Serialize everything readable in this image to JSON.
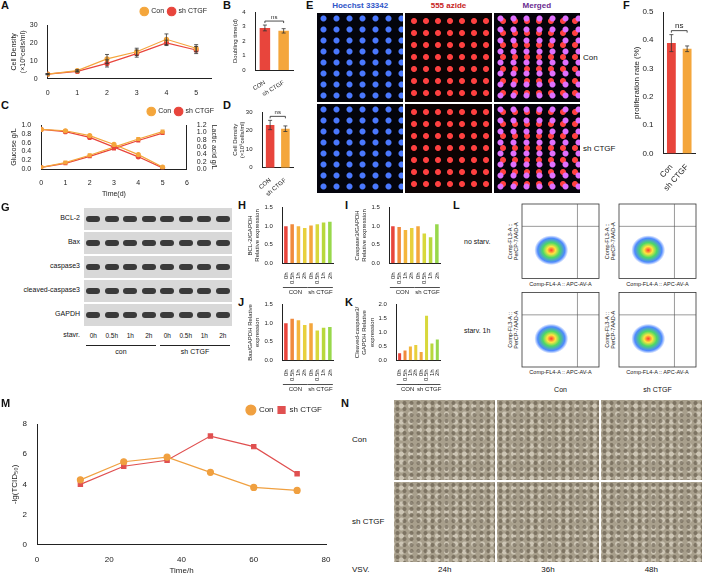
{
  "chart_data": [
    {
      "panel": "A",
      "type": "line",
      "x": [
        0,
        1,
        2,
        3,
        4,
        5
      ],
      "xlim": [
        0,
        5.5
      ],
      "xticks": [
        0,
        1,
        2,
        3,
        4,
        5
      ],
      "y_label": "Cell Density(×10⁵cells/ml)",
      "ylim": [
        0,
        30
      ],
      "yticks": [
        0,
        10,
        20,
        30
      ],
      "grid": false,
      "legend": "top",
      "series": [
        {
          "name": "Con",
          "color": "#f4a63c",
          "marker": "circle",
          "values": [
            2.5,
            4.5,
            11,
            15,
            22,
            17
          ],
          "errors": [
            0.3,
            0.5,
            2.5,
            2,
            3,
            2
          ]
        },
        {
          "name": "sh CTGF",
          "color": "#e8453c",
          "marker": "circle",
          "values": [
            2.5,
            4,
            8.5,
            14,
            20,
            16
          ],
          "errors": [
            0.3,
            0.4,
            2,
            2,
            1.5,
            2
          ]
        }
      ]
    },
    {
      "panel": "B",
      "type": "bar",
      "categories": [
        "CON",
        "sh CTGF"
      ],
      "y_label": "Doubling time(d)",
      "ylim": [
        0,
        4
      ],
      "yticks": [
        0,
        1,
        2,
        3,
        4
      ],
      "grid": false,
      "colors": [
        "#e8453c",
        "#f4a63c"
      ],
      "values": [
        2.9,
        2.7
      ],
      "errors": [
        0.2,
        0.15
      ],
      "annotation": "ns"
    },
    {
      "panel": "C",
      "type": "line",
      "x": [
        0,
        1,
        2,
        3,
        4,
        5
      ],
      "x_label": "Time(d)",
      "xlim": [
        0,
        6
      ],
      "xticks": [
        0,
        1,
        2,
        3,
        4,
        5,
        6
      ],
      "y_label": "Glucose g/L",
      "ylim": [
        0,
        1
      ],
      "yticks": [
        {
          "value": 0,
          "label": "0.0"
        },
        0.2,
        0.4,
        0.6,
        0.8,
        {
          "value": 1,
          "label": "1.0"
        }
      ],
      "y2_label": "Lactic acid g/L",
      "y2lim": [
        0,
        1.2
      ],
      "y2ticks": [
        {
          "value": 0,
          "label": "0.0"
        },
        0.2,
        0.4,
        0.6,
        0.8,
        {
          "value": 1,
          "label": "1.0"
        },
        1.2
      ],
      "grid": false,
      "legend": "top",
      "series": [
        {
          "name": "Con",
          "color": "#f4a63c",
          "marker": "circle",
          "values": [
            0.9,
            0.87,
            0.76,
            0.56,
            0.33,
            0.05
          ]
        },
        {
          "name": "sh CTGF",
          "color": "#e8453c",
          "marker": "circle",
          "values": [
            0.9,
            0.85,
            0.72,
            0.5,
            0.28,
            0.03
          ]
        },
        {
          "name": "Con",
          "color": "#f4a63c",
          "marker": "square",
          "axis": "y2",
          "values": [
            0.05,
            0.18,
            0.38,
            0.6,
            0.82,
            1.02
          ]
        },
        {
          "name": "sh CTGF",
          "color": "#e8453c",
          "marker": "square",
          "axis": "y2",
          "values": [
            0.05,
            0.16,
            0.35,
            0.56,
            0.78,
            0.98
          ]
        }
      ]
    },
    {
      "panel": "D",
      "type": "bar",
      "categories": [
        "CON",
        "sh CTGF"
      ],
      "y_label": "Cell Density(×10⁵cells/ml)",
      "ylim": [
        0,
        30
      ],
      "yticks": [
        0,
        10,
        20,
        30
      ],
      "grid": false,
      "colors": [
        "#e8453c",
        "#f4a63c"
      ],
      "values": [
        23,
        21
      ],
      "errors": [
        2.5,
        1.5
      ],
      "annotation": "ns"
    },
    {
      "panel": "F",
      "type": "bar",
      "categories": [
        "Con",
        "sh CTGF"
      ],
      "y_label": "proliferation rate (%)",
      "ylim": [
        0,
        0.5
      ],
      "yticks": [
        {
          "value": 0,
          "label": "0.0"
        },
        0.1,
        0.2,
        0.3,
        0.4,
        0.5
      ],
      "grid": false,
      "colors": [
        "#e8453c",
        "#f4a63c"
      ],
      "values": [
        0.39,
        0.37
      ],
      "errors": [
        0.03,
        0.01
      ],
      "annotation": "ns"
    },
    {
      "panel": "H",
      "type": "bar",
      "categories": [
        "0h",
        "0.5h",
        "1h",
        "2h",
        "0h",
        "0.5h",
        "1h",
        "2h"
      ],
      "groups": [
        {
          "label": "CON",
          "from": 0,
          "to": 3
        },
        {
          "label": "sh CTGF",
          "from": 4,
          "to": 7
        }
      ],
      "y_label": "BCL-2/GAPDH Relative expression",
      "ylim": [
        0,
        1.5
      ],
      "yticks": [
        {
          "value": 0,
          "label": "0.0"
        },
        0.5,
        {
          "value": 1,
          "label": "1.0"
        },
        1.5
      ],
      "grid": false,
      "colors": [
        "#e8453c",
        "#f08a3c",
        "#f4b63c",
        "#e8d03c",
        "#f4a63c",
        "#d8d83c",
        "#b8d83c",
        "#98d84c"
      ],
      "values": [
        1.0,
        1.05,
        1.0,
        0.95,
        1.02,
        1.05,
        1.1,
        1.12
      ]
    },
    {
      "panel": "I",
      "type": "bar",
      "categories": [
        "0h",
        "0.5h",
        "1h",
        "2h",
        "0h",
        "0.5h",
        "1h",
        "2h"
      ],
      "groups": [
        {
          "label": "CON",
          "from": 0,
          "to": 3
        },
        {
          "label": "sh CTGF",
          "from": 4,
          "to": 7
        }
      ],
      "y_label": "Caspase3/GAPDH Relative expression",
      "ylim": [
        0,
        1.5
      ],
      "yticks": [
        {
          "value": 0,
          "label": "0.0"
        },
        0.5,
        {
          "value": 1,
          "label": "1.0"
        },
        1.5
      ],
      "grid": false,
      "colors": [
        "#e8453c",
        "#f08a3c",
        "#f4b63c",
        "#e8d03c",
        "#f4a63c",
        "#d8d83c",
        "#b8d83c",
        "#98d84c"
      ],
      "values": [
        1.0,
        0.98,
        0.9,
        0.95,
        1.0,
        0.8,
        0.7,
        1.05
      ]
    },
    {
      "panel": "J",
      "type": "bar",
      "categories": [
        "0h",
        "0.5h",
        "1h",
        "2h",
        "0h",
        "0.5h",
        "1h",
        "2h"
      ],
      "groups": [
        {
          "label": "CON",
          "from": 0,
          "to": 3
        },
        {
          "label": "sh CTGF",
          "from": 4,
          "to": 7
        }
      ],
      "y_label": "Bax/GAPDH Relative expression",
      "ylim": [
        0,
        1.5
      ],
      "yticks": [
        {
          "value": 0,
          "label": "0.0"
        },
        0.5,
        {
          "value": 1,
          "label": "1.0"
        },
        1.5
      ],
      "grid": false,
      "colors": [
        "#e8453c",
        "#f08a3c",
        "#f4b63c",
        "#e8d03c",
        "#f4a63c",
        "#d8d83c",
        "#b8d83c",
        "#98d84c"
      ],
      "values": [
        1.0,
        1.12,
        1.08,
        0.95,
        1.0,
        0.8,
        0.88,
        0.9
      ]
    },
    {
      "panel": "K",
      "type": "bar",
      "categories": [
        "0h",
        "0.5h",
        "1h",
        "2h",
        "0h",
        "0.5h",
        "1h",
        "2h"
      ],
      "groups": [
        {
          "label": "CON",
          "from": 0,
          "to": 3
        },
        {
          "label": "sh CTGF",
          "from": 4,
          "to": 7
        }
      ],
      "y_label": "Cleaved-caspase3/GAPDH Relative expression",
      "ylim": [
        0,
        2
      ],
      "yticks": [
        {
          "value": 0,
          "label": "0.0"
        },
        0.5,
        {
          "value": 1,
          "label": "1.0"
        },
        1.5,
        {
          "value": 2,
          "label": "2.0"
        }
      ],
      "grid": false,
      "colors": [
        "#e8453c",
        "#f08a3c",
        "#f4b63c",
        "#e8d03c",
        "#f4a63c",
        "#d8d83c",
        "#b8d83c",
        "#98d84c"
      ],
      "values": [
        0.25,
        0.35,
        0.5,
        0.55,
        0.3,
        1.6,
        0.6,
        0.75
      ]
    },
    {
      "panel": "M",
      "type": "line",
      "x": [
        12,
        24,
        36,
        48,
        60,
        72
      ],
      "x_label": "Time/h",
      "xlim": [
        0,
        80
      ],
      "xticks": [
        0,
        20,
        40,
        60,
        80
      ],
      "y_label": "-lg(TCID₅₀)",
      "ylim": [
        0,
        8
      ],
      "yticks": [
        0,
        2,
        4,
        6,
        8
      ],
      "grid": false,
      "legend": "top",
      "series": [
        {
          "name": "Con",
          "color": "#f0a040",
          "marker": "circle",
          "values": [
            4.3,
            5.5,
            5.8,
            4.8,
            3.8,
            3.6
          ]
        },
        {
          "name": "sh CTGF",
          "color": "#e05050",
          "marker": "square",
          "values": [
            4.0,
            5.2,
            5.6,
            7.2,
            6.5,
            4.7
          ]
        }
      ]
    }
  ],
  "image_panels": [
    {
      "panel": "E",
      "type": "fluorescence",
      "columns": [
        "Hoechst 33342",
        "555 azide",
        "Merged"
      ],
      "rows": [
        "Con",
        "sh CTGF"
      ]
    },
    {
      "panel": "G",
      "type": "blot",
      "rows": [
        "BCL-2",
        "Bax",
        "caspase3",
        "cleaved-caspase3",
        "GAPDH"
      ],
      "lane_title": "stavr.",
      "lanes": [
        "0h",
        "0.5h",
        "1h",
        "2h",
        "0h",
        "0.5h",
        "1h",
        "2h"
      ],
      "groups": [
        "con",
        "sh CTGF"
      ]
    },
    {
      "panel": "L",
      "type": "flow_cytometry",
      "rows": [
        "no starv.",
        "starv. 1h"
      ],
      "columns": [
        "Con",
        "sh CTGF"
      ],
      "x_label": "Comp-FL4-A :: APC-AV-A",
      "y_label": "Comp-FL3-A :: PerCP-7AAD-A"
    },
    {
      "panel": "N",
      "type": "micrographs",
      "rows": [
        "Con",
        "sh CTGF"
      ],
      "column_title": "VSV.",
      "columns": [
        "24h",
        "36h",
        "48h"
      ]
    }
  ]
}
